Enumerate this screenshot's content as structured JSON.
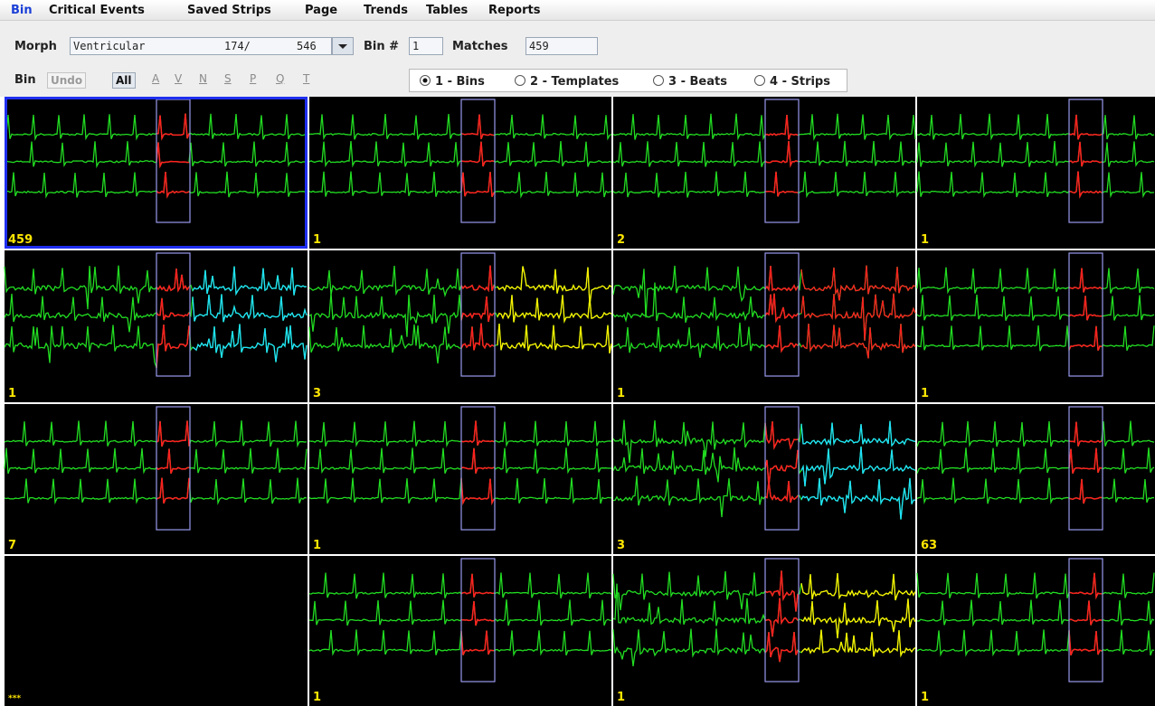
{
  "menu": [
    "Bin",
    "Critical Events",
    "Saved Strips",
    "Page",
    "Trends",
    "Tables",
    "Reports"
  ],
  "toolbar": {
    "morph_label": "Morph",
    "morph_value": "Ventricular",
    "morph_count": "174/",
    "morph_total": "546",
    "bin_label": "Bin #",
    "bin_value": "1",
    "matches_label": "Matches",
    "matches_value": "459"
  },
  "filters": {
    "bin_label": "Bin",
    "undo": "Undo",
    "buttons": [
      "All",
      "A",
      "V",
      "N",
      "S",
      "P",
      "Q",
      "T"
    ]
  },
  "view_options": [
    "1 - Bins",
    "2 - Templates",
    "3 - Beats",
    "4 - Strips"
  ],
  "tiles": [
    "459",
    "1",
    "2",
    "1",
    "1",
    "3",
    "1",
    "1",
    "7",
    "1",
    "3",
    "63",
    "***",
    "1",
    "1",
    "1"
  ]
}
